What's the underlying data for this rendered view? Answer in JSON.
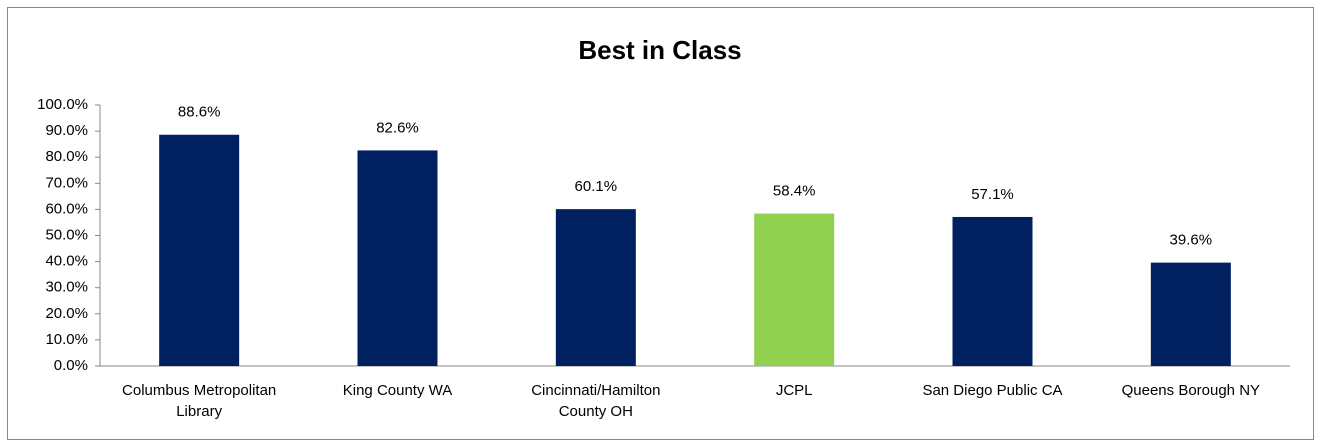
{
  "chart_data": {
    "type": "bar",
    "title": "Best in Class",
    "categories": [
      "Columbus Metropolitan Library",
      "King County WA",
      "Cincinnati/Hamilton County OH",
      "JCPL",
      "San Diego Public CA",
      "Queens Borough NY"
    ],
    "values": [
      88.6,
      82.6,
      60.1,
      58.4,
      57.1,
      39.6
    ],
    "value_labels": [
      "88.6%",
      "82.6%",
      "60.1%",
      "58.4%",
      "57.1%",
      "39.6%"
    ],
    "colors": [
      "#002060",
      "#002060",
      "#002060",
      "#92d050",
      "#002060",
      "#002060"
    ],
    "ylim": [
      0,
      100
    ],
    "yticks": [
      {
        "value": 0,
        "label": "0.0%"
      },
      {
        "value": 10,
        "label": "10.0%"
      },
      {
        "value": 20,
        "label": "20.0%"
      },
      {
        "value": 30,
        "label": "30.0%"
      },
      {
        "value": 40,
        "label": "40.0%"
      },
      {
        "value": 50,
        "label": "50.0%"
      },
      {
        "value": 60,
        "label": "60.0%"
      },
      {
        "value": 70,
        "label": "70.0%"
      },
      {
        "value": 80,
        "label": "80.0%"
      },
      {
        "value": 90,
        "label": "90.0%"
      },
      {
        "value": 100,
        "label": "100.0%"
      }
    ],
    "grid": false
  }
}
